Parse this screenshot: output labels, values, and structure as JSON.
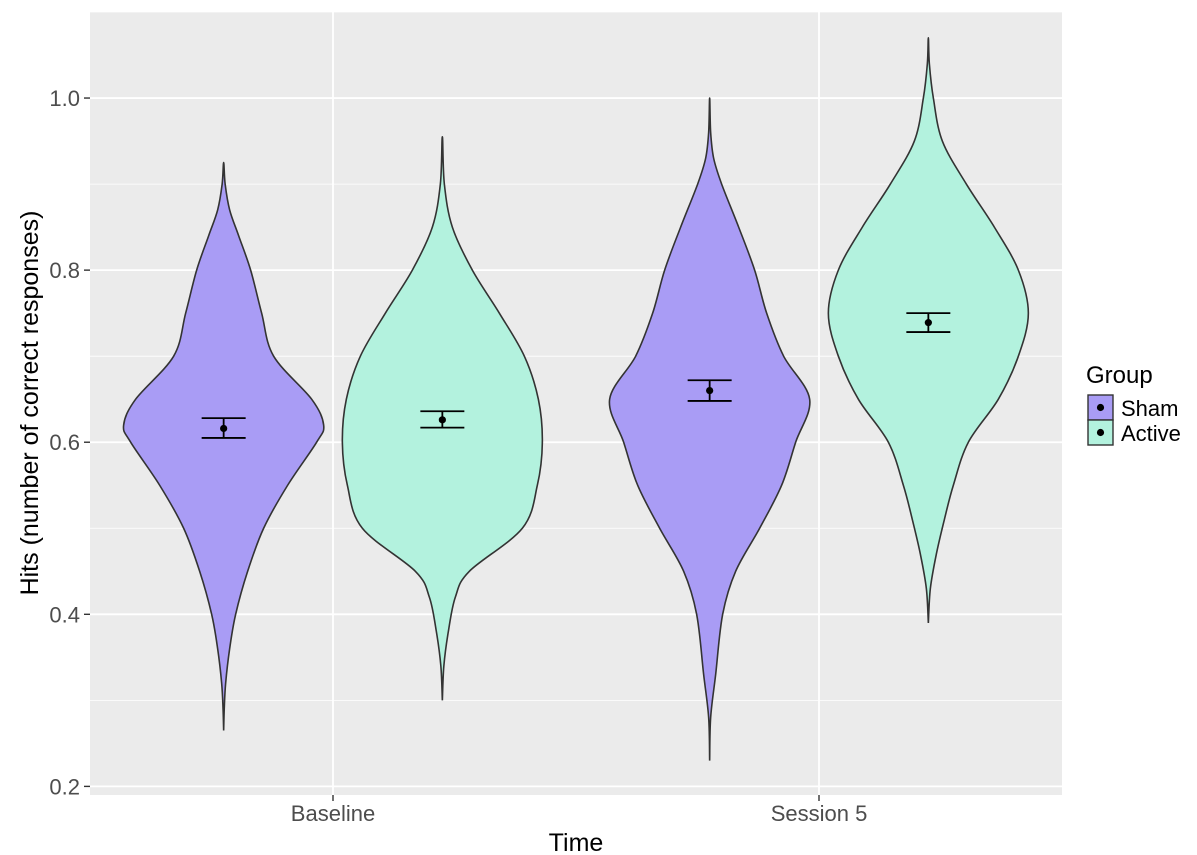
{
  "chart_data": {
    "type": "violin",
    "xlabel": "Time",
    "ylabel": "Hits (number of correct responses)",
    "categories": [
      "Baseline",
      "Session 5"
    ],
    "yticks": [
      0.2,
      0.4,
      0.6,
      0.8,
      1.0
    ],
    "ytick_labels": [
      "0.2",
      "0.4",
      "0.6",
      "0.8",
      "1.0"
    ],
    "ylim": [
      0.19,
      1.1
    ],
    "grid": true,
    "legend": {
      "title": "Group",
      "position": "right",
      "entries": [
        "Sham",
        "Active"
      ]
    },
    "series": [
      {
        "name": "Sham",
        "color": "#a99cf5",
        "violins": [
          {
            "category": "Baseline",
            "mean": 0.616,
            "ci_low": 0.605,
            "ci_high": 0.628,
            "profile": [
              [
                0.265,
                0
              ],
              [
                0.29,
                0.006
              ],
              [
                0.32,
                0.02
              ],
              [
                0.36,
                0.06
              ],
              [
                0.4,
                0.12
              ],
              [
                0.45,
                0.24
              ],
              [
                0.5,
                0.4
              ],
              [
                0.55,
                0.64
              ],
              [
                0.6,
                0.93
              ],
              [
                0.62,
                1.0
              ],
              [
                0.65,
                0.88
              ],
              [
                0.7,
                0.5
              ],
              [
                0.75,
                0.38
              ],
              [
                0.8,
                0.27
              ],
              [
                0.84,
                0.15
              ],
              [
                0.87,
                0.06
              ],
              [
                0.9,
                0.015
              ],
              [
                0.925,
                0
              ]
            ]
          },
          {
            "category": "Session 5",
            "mean": 0.66,
            "ci_low": 0.648,
            "ci_high": 0.672,
            "profile": [
              [
                0.23,
                0
              ],
              [
                0.28,
                0.01
              ],
              [
                0.33,
                0.06
              ],
              [
                0.4,
                0.13
              ],
              [
                0.45,
                0.26
              ],
              [
                0.5,
                0.5
              ],
              [
                0.55,
                0.72
              ],
              [
                0.6,
                0.86
              ],
              [
                0.65,
                1.0
              ],
              [
                0.7,
                0.74
              ],
              [
                0.75,
                0.57
              ],
              [
                0.8,
                0.45
              ],
              [
                0.85,
                0.29
              ],
              [
                0.9,
                0.12
              ],
              [
                0.93,
                0.04
              ],
              [
                0.96,
                0.01
              ],
              [
                1.0,
                0
              ]
            ]
          }
        ]
      },
      {
        "name": "Active",
        "color": "#b3f2de",
        "violins": [
          {
            "category": "Baseline",
            "mean": 0.626,
            "ci_low": 0.617,
            "ci_high": 0.636,
            "profile": [
              [
                0.3,
                0
              ],
              [
                0.34,
                0.015
              ],
              [
                0.38,
                0.06
              ],
              [
                0.42,
                0.13
              ],
              [
                0.45,
                0.27
              ],
              [
                0.5,
                0.8
              ],
              [
                0.55,
                0.95
              ],
              [
                0.6,
                1.0
              ],
              [
                0.65,
                0.96
              ],
              [
                0.7,
                0.82
              ],
              [
                0.75,
                0.57
              ],
              [
                0.8,
                0.3
              ],
              [
                0.85,
                0.1
              ],
              [
                0.9,
                0.02
              ],
              [
                0.955,
                0
              ]
            ]
          },
          {
            "category": "Session 5",
            "mean": 0.739,
            "ci_low": 0.728,
            "ci_high": 0.75,
            "profile": [
              [
                0.39,
                0
              ],
              [
                0.43,
                0.02
              ],
              [
                0.47,
                0.08
              ],
              [
                0.51,
                0.16
              ],
              [
                0.55,
                0.25
              ],
              [
                0.6,
                0.4
              ],
              [
                0.65,
                0.7
              ],
              [
                0.7,
                0.9
              ],
              [
                0.75,
                1.0
              ],
              [
                0.8,
                0.9
              ],
              [
                0.85,
                0.66
              ],
              [
                0.9,
                0.38
              ],
              [
                0.95,
                0.14
              ],
              [
                1.0,
                0.05
              ],
              [
                1.04,
                0.01
              ],
              [
                1.07,
                0
              ]
            ]
          }
        ]
      }
    ]
  }
}
